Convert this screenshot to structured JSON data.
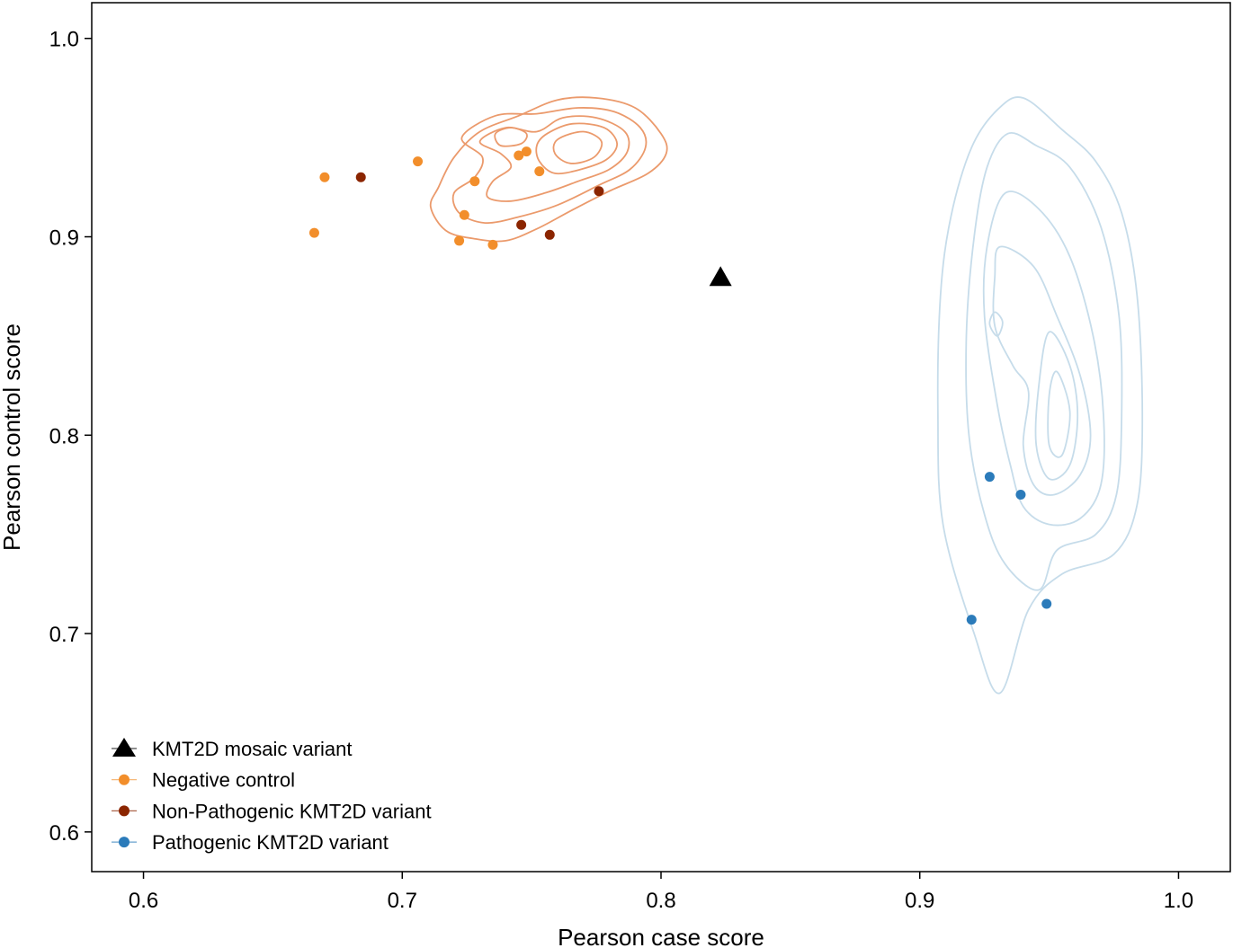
{
  "chart_data": {
    "type": "scatter",
    "xlabel": "Pearson case score",
    "ylabel": "Pearson control score",
    "xlim": [
      0.58,
      1.02
    ],
    "ylim": [
      0.58,
      1.018
    ],
    "x_ticks": [
      {
        "value": 0.6,
        "label": "0.6"
      },
      {
        "value": 0.7,
        "label": "0.7"
      },
      {
        "value": 0.8,
        "label": "0.8"
      },
      {
        "value": 0.9,
        "label": "0.9"
      },
      {
        "value": 1.0,
        "label": "1.0"
      }
    ],
    "y_ticks": [
      {
        "value": 0.6,
        "label": "0.6"
      },
      {
        "value": 0.7,
        "label": "0.7"
      },
      {
        "value": 0.8,
        "label": "0.8"
      },
      {
        "value": 0.9,
        "label": "0.9"
      },
      {
        "value": 1.0,
        "label": "1.0"
      }
    ],
    "grid": false,
    "legend_position": "lower-left",
    "series": [
      {
        "name": "KMT2D mosaic variant",
        "marker": "triangle",
        "color": "#000000",
        "points": [
          {
            "x": 0.823,
            "y": 0.879
          }
        ]
      },
      {
        "name": "Negative control",
        "marker": "circle",
        "color": "#f28e2b",
        "points": [
          {
            "x": 0.67,
            "y": 0.93
          },
          {
            "x": 0.666,
            "y": 0.902
          },
          {
            "x": 0.706,
            "y": 0.938
          },
          {
            "x": 0.728,
            "y": 0.928
          },
          {
            "x": 0.724,
            "y": 0.911
          },
          {
            "x": 0.722,
            "y": 0.898
          },
          {
            "x": 0.735,
            "y": 0.896
          },
          {
            "x": 0.745,
            "y": 0.941
          },
          {
            "x": 0.748,
            "y": 0.943
          },
          {
            "x": 0.753,
            "y": 0.933
          }
        ]
      },
      {
        "name": "Non-Pathogenic KMT2D variant",
        "marker": "circle",
        "color": "#8b2500",
        "points": [
          {
            "x": 0.684,
            "y": 0.93
          },
          {
            "x": 0.746,
            "y": 0.906
          },
          {
            "x": 0.757,
            "y": 0.901
          },
          {
            "x": 0.776,
            "y": 0.923
          }
        ]
      },
      {
        "name": "Pathogenic KMT2D variant",
        "marker": "circle",
        "color": "#2b7bba",
        "points": [
          {
            "x": 0.927,
            "y": 0.779
          },
          {
            "x": 0.939,
            "y": 0.77
          },
          {
            "x": 0.949,
            "y": 0.715
          },
          {
            "x": 0.92,
            "y": 0.707
          }
        ]
      }
    ],
    "density_contours": [
      {
        "group": "Negative control",
        "color": "#eb9a6c",
        "levels": [
          [
            [
              0.72,
              0.94
            ],
            [
              0.73,
              0.953
            ],
            [
              0.745,
              0.961
            ],
            [
              0.76,
              0.969
            ],
            [
              0.775,
              0.97
            ],
            [
              0.79,
              0.965
            ],
            [
              0.8,
              0.952
            ],
            [
              0.802,
              0.942
            ],
            [
              0.795,
              0.932
            ],
            [
              0.78,
              0.923
            ],
            [
              0.765,
              0.913
            ],
            [
              0.752,
              0.904
            ],
            [
              0.74,
              0.898
            ],
            [
              0.728,
              0.899
            ],
            [
              0.717,
              0.903
            ],
            [
              0.711,
              0.915
            ],
            [
              0.714,
              0.925
            ]
          ],
          [
            [
              0.723,
              0.95
            ],
            [
              0.736,
              0.961
            ],
            [
              0.752,
              0.962
            ],
            [
              0.768,
              0.965
            ],
            [
              0.782,
              0.963
            ],
            [
              0.792,
              0.955
            ],
            [
              0.794,
              0.945
            ],
            [
              0.788,
              0.934
            ],
            [
              0.776,
              0.926
            ],
            [
              0.76,
              0.916
            ],
            [
              0.745,
              0.91
            ],
            [
              0.732,
              0.907
            ],
            [
              0.722,
              0.912
            ],
            [
              0.72,
              0.922
            ],
            [
              0.728,
              0.93
            ],
            [
              0.731,
              0.94
            ]
          ],
          [
            [
              0.73,
              0.948
            ],
            [
              0.74,
              0.955
            ],
            [
              0.752,
              0.953
            ],
            [
              0.762,
              0.96
            ],
            [
              0.775,
              0.96
            ],
            [
              0.786,
              0.953
            ],
            [
              0.787,
              0.943
            ],
            [
              0.78,
              0.934
            ],
            [
              0.768,
              0.928
            ],
            [
              0.755,
              0.922
            ],
            [
              0.742,
              0.918
            ],
            [
              0.733,
              0.92
            ],
            [
              0.735,
              0.928
            ],
            [
              0.742,
              0.935
            ],
            [
              0.738,
              0.942
            ]
          ],
          [
            [
              0.756,
              0.952
            ],
            [
              0.766,
              0.957
            ],
            [
              0.778,
              0.955
            ],
            [
              0.783,
              0.947
            ],
            [
              0.779,
              0.939
            ],
            [
              0.769,
              0.934
            ],
            [
              0.759,
              0.932
            ],
            [
              0.753,
              0.938
            ],
            [
              0.752,
              0.946
            ]
          ],
          [
            [
              0.76,
              0.949
            ],
            [
              0.77,
              0.953
            ],
            [
              0.777,
              0.948
            ],
            [
              0.774,
              0.94
            ],
            [
              0.765,
              0.937
            ],
            [
              0.759,
              0.942
            ]
          ],
          [
            [
              0.736,
              0.952
            ],
            [
              0.742,
              0.955
            ],
            [
              0.748,
              0.952
            ],
            [
              0.746,
              0.947
            ],
            [
              0.738,
              0.946
            ]
          ]
        ]
      },
      {
        "group": "Pathogenic KMT2D variant",
        "color": "#c6dcea",
        "levels": [
          [
            [
              0.94,
              0.97
            ],
            [
              0.955,
              0.954
            ],
            [
              0.968,
              0.938
            ],
            [
              0.978,
              0.912
            ],
            [
              0.984,
              0.87
            ],
            [
              0.986,
              0.81
            ],
            [
              0.984,
              0.765
            ],
            [
              0.975,
              0.74
            ],
            [
              0.955,
              0.73
            ],
            [
              0.942,
              0.712
            ],
            [
              0.931,
              0.67
            ],
            [
              0.921,
              0.7
            ],
            [
              0.909,
              0.755
            ],
            [
              0.907,
              0.81
            ],
            [
              0.908,
              0.87
            ],
            [
              0.912,
              0.91
            ],
            [
              0.92,
              0.945
            ],
            [
              0.93,
              0.964
            ]
          ],
          [
            [
              0.934,
              0.952
            ],
            [
              0.945,
              0.946
            ],
            [
              0.958,
              0.935
            ],
            [
              0.97,
              0.905
            ],
            [
              0.977,
              0.86
            ],
            [
              0.978,
              0.81
            ],
            [
              0.976,
              0.77
            ],
            [
              0.968,
              0.75
            ],
            [
              0.953,
              0.742
            ],
            [
              0.946,
              0.722
            ],
            [
              0.933,
              0.735
            ],
            [
              0.925,
              0.76
            ],
            [
              0.919,
              0.8
            ],
            [
              0.918,
              0.85
            ],
            [
              0.921,
              0.9
            ],
            [
              0.926,
              0.935
            ]
          ],
          [
            [
              0.933,
              0.922
            ],
            [
              0.946,
              0.914
            ],
            [
              0.958,
              0.89
            ],
            [
              0.967,
              0.85
            ],
            [
              0.971,
              0.81
            ],
            [
              0.97,
              0.775
            ],
            [
              0.962,
              0.758
            ],
            [
              0.95,
              0.755
            ],
            [
              0.94,
              0.764
            ],
            [
              0.935,
              0.785
            ],
            [
              0.93,
              0.815
            ],
            [
              0.925,
              0.86
            ],
            [
              0.926,
              0.895
            ]
          ],
          [
            [
              0.931,
              0.895
            ],
            [
              0.944,
              0.885
            ],
            [
              0.953,
              0.86
            ],
            [
              0.962,
              0.83
            ],
            [
              0.966,
              0.8
            ],
            [
              0.962,
              0.78
            ],
            [
              0.952,
              0.77
            ],
            [
              0.944,
              0.775
            ],
            [
              0.94,
              0.795
            ],
            [
              0.942,
              0.822
            ],
            [
              0.936,
              0.835
            ],
            [
              0.929,
              0.855
            ],
            [
              0.929,
              0.88
            ]
          ],
          [
            [
              0.95,
              0.852
            ],
            [
              0.958,
              0.835
            ],
            [
              0.961,
              0.81
            ],
            [
              0.958,
              0.785
            ],
            [
              0.95,
              0.778
            ],
            [
              0.945,
              0.795
            ],
            [
              0.946,
              0.825
            ]
          ],
          [
            [
              0.953,
              0.832
            ],
            [
              0.958,
              0.812
            ],
            [
              0.955,
              0.79
            ],
            [
              0.95,
              0.795
            ],
            [
              0.95,
              0.82
            ]
          ],
          [
            [
              0.929,
              0.862
            ],
            [
              0.932,
              0.857
            ],
            [
              0.93,
              0.85
            ],
            [
              0.927,
              0.856
            ]
          ]
        ]
      }
    ]
  }
}
